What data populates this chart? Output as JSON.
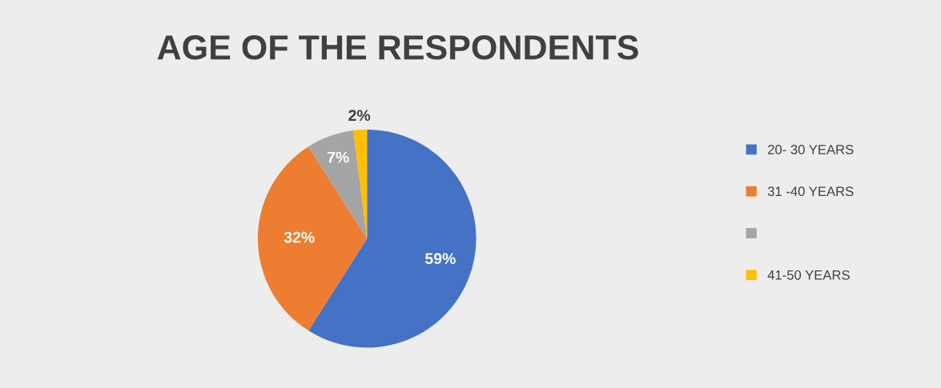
{
  "chart_data": {
    "type": "pie",
    "title": "AGE OF THE RESPONDENTS",
    "categories": [
      "20- 30 YEARS",
      "31 -40 YEARS",
      null,
      "41-50 YEARS"
    ],
    "values": [
      59,
      32,
      7,
      2
    ],
    "colors": [
      "#4472c4",
      "#ed7d31",
      "#a5a5a5",
      "#ffc000"
    ],
    "value_labels": [
      "59%",
      "32%",
      "7%",
      "2%"
    ],
    "legend": "right"
  }
}
